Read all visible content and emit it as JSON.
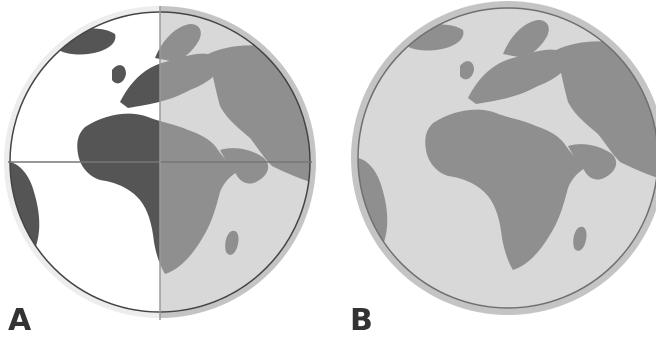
{
  "panels": [
    {
      "label": "A"
    },
    {
      "label": "B"
    }
  ],
  "colors": {
    "ocean_light": "#ffffff",
    "land_dark": "#555555",
    "ocean_shaded": "#d8d8d8",
    "land_shaded": "#8f8f8f",
    "rim": "#c4c4c4",
    "outline": "#444444",
    "axis": "#777777",
    "label": "#333333"
  }
}
